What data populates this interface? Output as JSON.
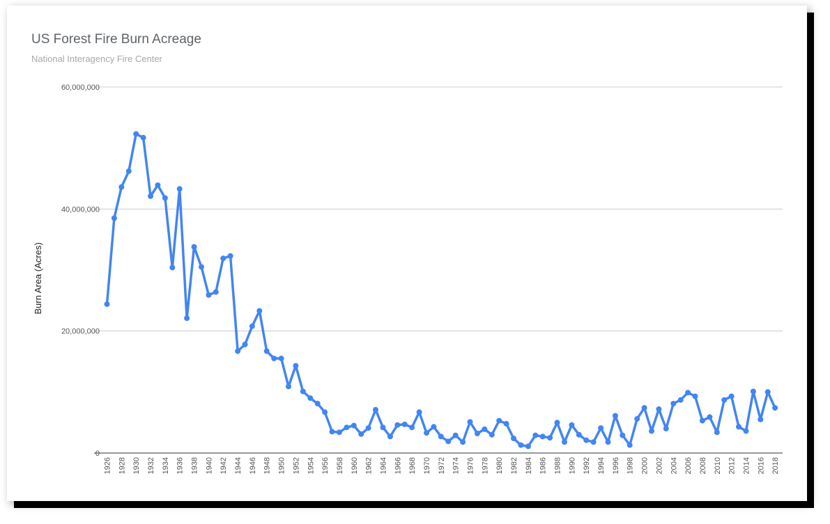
{
  "colors": {
    "series": "#4285f4",
    "grid": "#cccccc",
    "axis": "#333333"
  },
  "chart_data": {
    "type": "line",
    "title": "US Forest Fire Burn Acreage",
    "subtitle": "National Interagency Fire Center",
    "xlabel": "",
    "ylabel": "Burn Area (Acres)",
    "ylim": [
      0,
      60000000
    ],
    "yticks": [
      0,
      20000000,
      40000000,
      60000000
    ],
    "ytick_labels": [
      "0",
      "20,000,000",
      "40,000,000",
      "60,000,000"
    ],
    "xtick_labels": [
      "1926",
      "1928",
      "1930",
      "1932",
      "1934",
      "1936",
      "1938",
      "1940",
      "1942",
      "1944",
      "1946",
      "1948",
      "1950",
      "1952",
      "1954",
      "1956",
      "1958",
      "1960",
      "1962",
      "1964",
      "1966",
      "1968",
      "1970",
      "1972",
      "1974",
      "1976",
      "1978",
      "1980",
      "1982",
      "1984",
      "1986",
      "1988",
      "1990",
      "1992",
      "1994",
      "1996",
      "1998",
      "2000",
      "2002",
      "2004",
      "2006",
      "2008",
      "2010",
      "2012",
      "2014",
      "2016",
      "2018"
    ],
    "grid": true,
    "legend": "none",
    "series": [
      {
        "x": [
          1926,
          1927,
          1928,
          1929,
          1930,
          1931,
          1932,
          1933,
          1934,
          1935,
          1936,
          1937,
          1938,
          1939,
          1940,
          1941,
          1942,
          1943,
          1944,
          1945,
          1946,
          1947,
          1948,
          1949,
          1950,
          1951,
          1952,
          1953,
          1954,
          1955,
          1956,
          1957,
          1958,
          1959,
          1960,
          1961,
          1962,
          1963,
          1964,
          1965,
          1966,
          1967,
          1968,
          1969,
          1970,
          1971,
          1972,
          1973,
          1974,
          1975,
          1976,
          1977,
          1978,
          1979,
          1980,
          1981,
          1982,
          1983,
          1984,
          1985,
          1986,
          1987,
          1988,
          1989,
          1990,
          1991,
          1992,
          1993,
          1994,
          1995,
          1996,
          1997,
          1998,
          1999,
          2000,
          2001,
          2002,
          2003,
          2004,
          2005,
          2006,
          2007,
          2008,
          2009,
          2010,
          2011,
          2012,
          2013,
          2014,
          2015,
          2016,
          2017,
          2018
        ],
        "values": [
          24400000,
          38500000,
          43600000,
          46200000,
          52300000,
          51700000,
          42100000,
          43900000,
          41800000,
          30400000,
          43300000,
          22100000,
          33800000,
          30500000,
          25900000,
          26400000,
          31900000,
          32300000,
          16700000,
          17800000,
          20800000,
          23300000,
          16700000,
          15500000,
          15500000,
          10900000,
          14300000,
          10100000,
          9000000,
          8100000,
          6700000,
          3500000,
          3400000,
          4200000,
          4500000,
          3100000,
          4100000,
          7100000,
          4200000,
          2700000,
          4600000,
          4700000,
          4200000,
          6700000,
          3300000,
          4300000,
          2700000,
          1900000,
          2900000,
          1800000,
          5100000,
          3200000,
          3900000,
          3000000,
          5300000,
          4800000,
          2400000,
          1300000,
          1100000,
          2900000,
          2700000,
          2500000,
          5000000,
          1800000,
          4600000,
          3000000,
          2100000,
          1800000,
          4100000,
          1800000,
          6100000,
          2900000,
          1300000,
          5600000,
          7400000,
          3600000,
          7200000,
          4000000,
          8100000,
          8700000,
          9900000,
          9300000,
          5300000,
          5900000,
          3400000,
          8700000,
          9300000,
          4300000,
          3600000,
          10100000,
          5500000,
          10000000,
          7400000
        ]
      }
    ]
  }
}
